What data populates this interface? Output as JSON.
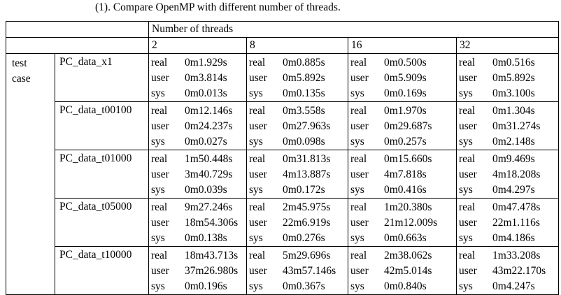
{
  "caption": "(1). Compare OpenMP with different number of threads.",
  "header": {
    "group_label": "Number of threads",
    "threads": [
      "2",
      "8",
      "16",
      "32"
    ]
  },
  "row_group_label": [
    "test",
    "case"
  ],
  "metric_labels": [
    "real",
    "user",
    "sys"
  ],
  "rows": [
    {
      "name": "PC_data_x1",
      "values": [
        [
          "0m1.929s",
          "0m3.814s",
          "0m0.013s"
        ],
        [
          "0m0.885s",
          "0m5.892s",
          "0m0.135s"
        ],
        [
          "0m0.500s",
          "0m5.909s",
          "0m0.169s"
        ],
        [
          "0m0.516s",
          "0m5.892s",
          "0m3.100s"
        ]
      ]
    },
    {
      "name": "PC_data_t00100",
      "values": [
        [
          "0m12.146s",
          "0m24.237s",
          "0m0.027s"
        ],
        [
          "0m3.558s",
          "0m27.963s",
          "0m0.098s"
        ],
        [
          "0m1.970s",
          "0m29.687s",
          "0m0.257s"
        ],
        [
          "0m1.304s",
          "0m31.274s",
          "0m2.148s"
        ]
      ]
    },
    {
      "name": "PC_data_t01000",
      "values": [
        [
          "1m50.448s",
          "3m40.729s",
          "0m0.039s"
        ],
        [
          "0m31.813s",
          "4m13.887s",
          "0m0.172s"
        ],
        [
          "0m15.660s",
          "4m7.818s",
          "0m0.416s"
        ],
        [
          "0m9.469s",
          "4m18.208s",
          "0m4.297s"
        ]
      ]
    },
    {
      "name": "PC_data_t05000",
      "values": [
        [
          "9m27.246s",
          "18m54.306s",
          "0m0.138s"
        ],
        [
          "2m45.975s",
          "22m6.919s",
          "0m0.276s"
        ],
        [
          "1m20.380s",
          "21m12.009s",
          "0m0.663s"
        ],
        [
          "0m47.478s",
          "22m1.116s",
          "0m4.186s"
        ]
      ]
    },
    {
      "name": "PC_data_t10000",
      "values": [
        [
          "18m43.713s",
          "37m26.980s",
          "0m0.196s"
        ],
        [
          "5m29.696s",
          "43m57.146s",
          "0m0.367s"
        ],
        [
          "2m38.062s",
          "42m5.014s",
          "0m0.840s"
        ],
        [
          "1m33.208s",
          "43m22.170s",
          "0m4.247s"
        ]
      ]
    }
  ]
}
